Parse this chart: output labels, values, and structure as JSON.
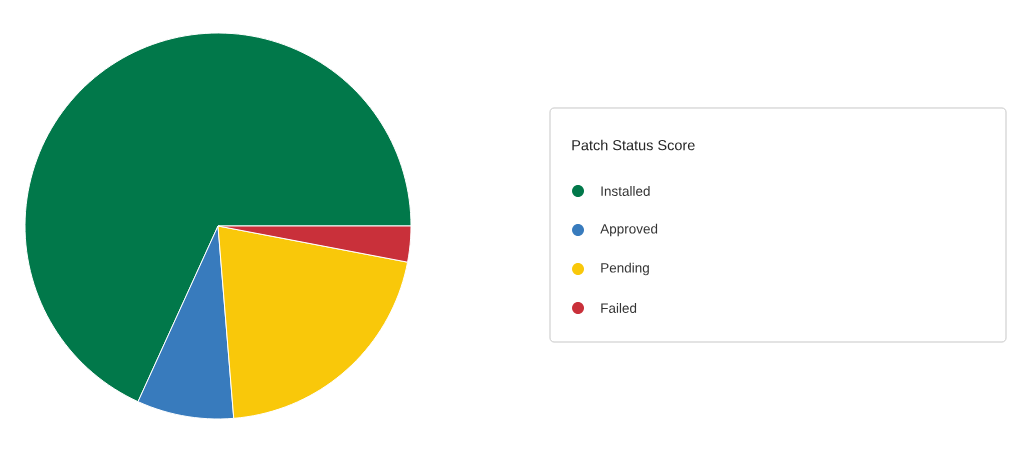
{
  "chart_data": {
    "type": "pie",
    "legend_title": "Patch Status Score",
    "categories": [
      "Installed",
      "Approved",
      "Pending",
      "Failed"
    ],
    "values": [
      68.2,
      8.1,
      20.7,
      3.0
    ],
    "colors": [
      "#01784a",
      "#387bbd",
      "#f9c80a",
      "#c9303a"
    ],
    "legend": "right"
  }
}
